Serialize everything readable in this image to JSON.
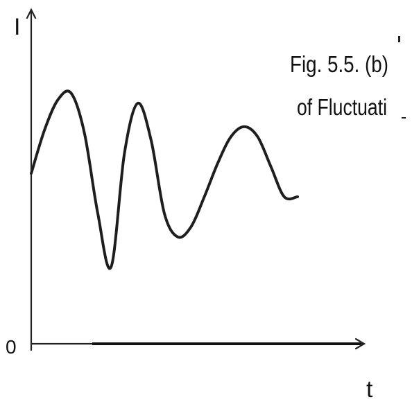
{
  "chart_data": {
    "type": "line",
    "ylabel": "I",
    "xlabel": "t",
    "origin_label": "0",
    "caption_line1": "Fig. 5.5. (b)",
    "caption_line2": "of Fluctuati",
    "x": [
      0,
      1,
      2,
      3,
      4,
      5,
      6,
      7,
      8,
      9,
      10,
      11,
      12,
      13,
      14,
      15,
      16,
      17,
      18,
      19,
      20
    ],
    "series": [
      {
        "values": [
          0.51,
          0.64,
          0.73,
          0.75,
          0.63,
          0.39,
          0.23,
          0.57,
          0.72,
          0.61,
          0.39,
          0.32,
          0.35,
          0.44,
          0.54,
          0.62,
          0.65,
          0.62,
          0.53,
          0.44,
          0.44
        ]
      }
    ],
    "xlim": [
      0,
      25
    ],
    "ylim": [
      0,
      1
    ]
  }
}
